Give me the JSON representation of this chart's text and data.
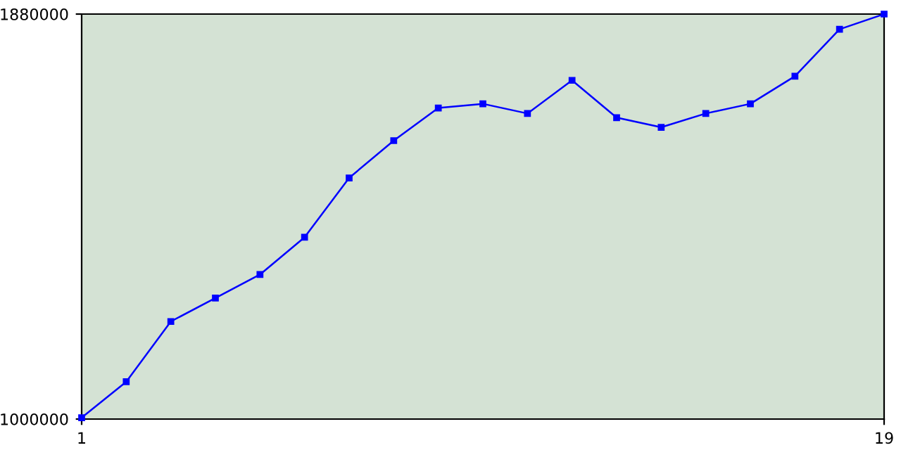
{
  "chart_data": {
    "type": "line",
    "x": [
      1,
      2,
      3,
      4,
      5,
      6,
      7,
      8,
      9,
      10,
      11,
      12,
      13,
      14,
      15,
      16,
      17,
      18,
      19
    ],
    "series": [
      {
        "color": "#0000ff",
        "values": [
          1003000,
          1081000,
          1212000,
          1263000,
          1314000,
          1395000,
          1524000,
          1605000,
          1676000,
          1685000,
          1664000,
          1736000,
          1655000,
          1634000,
          1664000,
          1685000,
          1745000,
          1847000,
          1880000
        ]
      }
    ],
    "xlim": [
      1,
      19
    ],
    "xticks": [
      1,
      19
    ],
    "ylim": [
      1000000,
      1880000
    ],
    "yticks": [
      1000000,
      1880000
    ],
    "marker": "square",
    "line_style": "solid",
    "grid": false,
    "legend": false
  }
}
